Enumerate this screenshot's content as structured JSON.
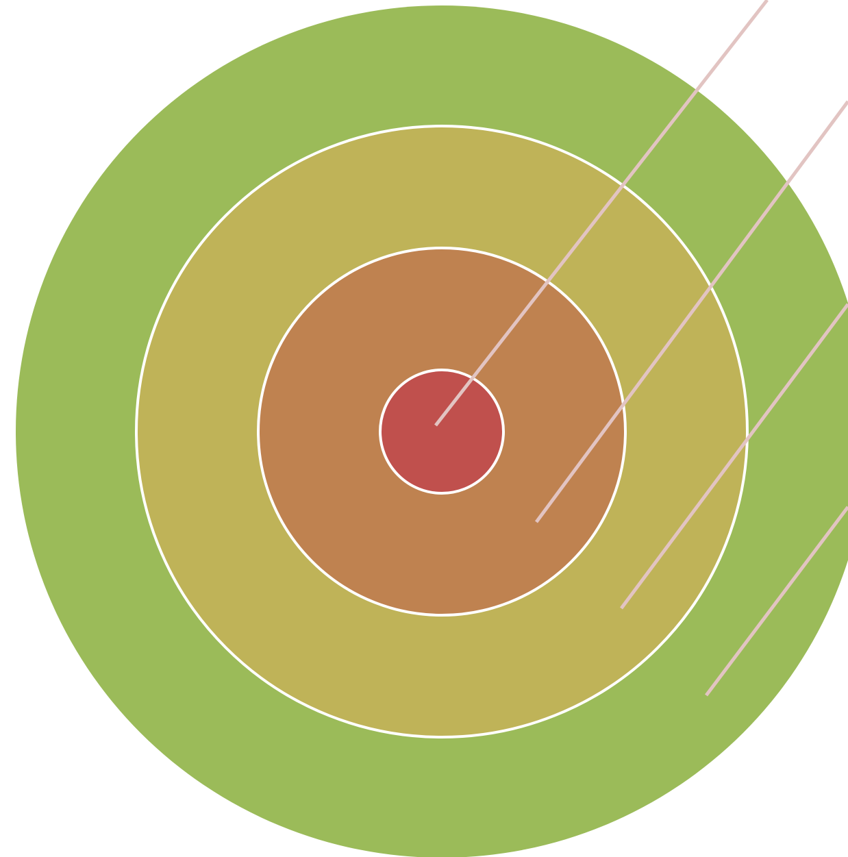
{
  "diagram": {
    "type": "concentric-target",
    "ring_separator_color": "#ffffff",
    "leader_line_color": "#e2c4c2",
    "rings": [
      {
        "name": "outer-ring",
        "color": "#9bbb59"
      },
      {
        "name": "second-ring",
        "color": "#bfb358"
      },
      {
        "name": "third-ring",
        "color": "#bf8250"
      },
      {
        "name": "center-ring",
        "color": "#c0504d"
      }
    ],
    "leader_lines": [
      {
        "name": "leader-line-center"
      },
      {
        "name": "leader-line-third"
      },
      {
        "name": "leader-line-second"
      },
      {
        "name": "leader-line-outer"
      }
    ]
  }
}
